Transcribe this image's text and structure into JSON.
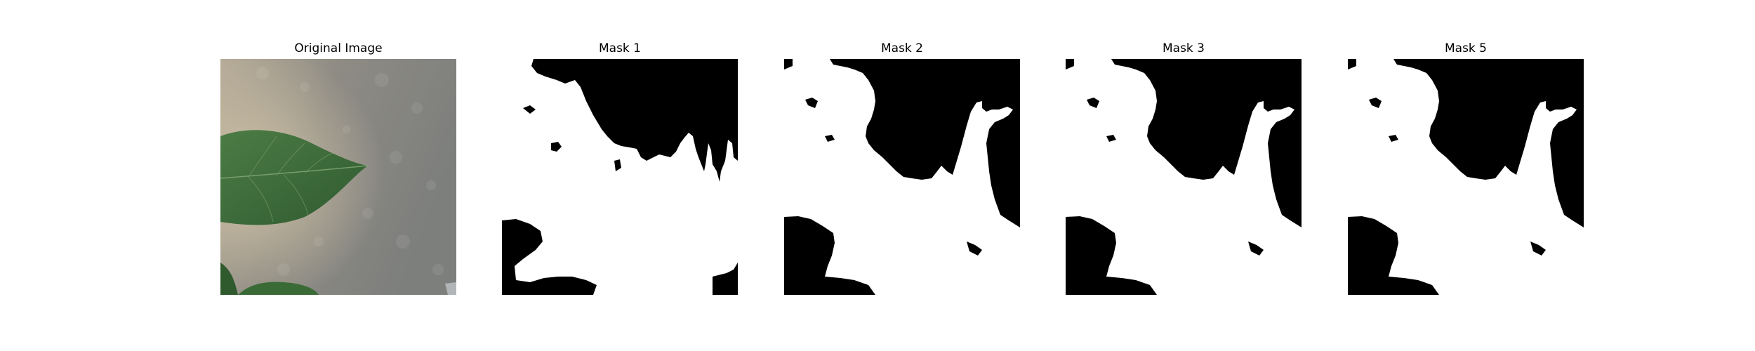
{
  "figure": {
    "panels": [
      {
        "title": "Original Image",
        "kind": "photo",
        "content": "green leaf"
      },
      {
        "title": "Mask 1",
        "kind": "binary-mask"
      },
      {
        "title": "Mask 2",
        "kind": "binary-mask"
      },
      {
        "title": "Mask 3",
        "kind": "binary-mask"
      },
      {
        "title": "Mask 5",
        "kind": "binary-mask"
      }
    ],
    "colors": {
      "mask_foreground": "#ffffff",
      "mask_background": "#000000",
      "photo_background": "#9a958c",
      "leaf": "#3c6b3a"
    }
  }
}
